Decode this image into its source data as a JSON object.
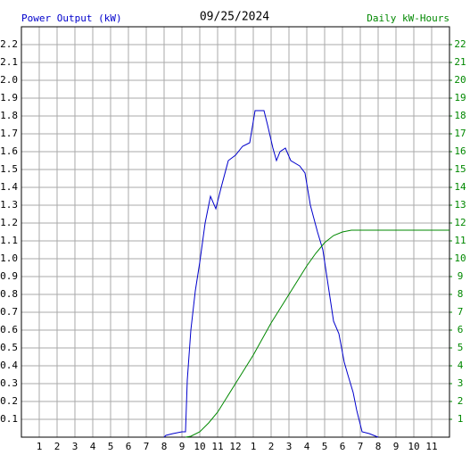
{
  "chart_data": {
    "type": "line",
    "title": "09/25/2024",
    "xlim": [
      0,
      24
    ],
    "xticks": [
      1,
      2,
      3,
      4,
      5,
      6,
      7,
      8,
      9,
      10,
      11,
      12,
      {
        "value": 13,
        "label": "1"
      },
      {
        "value": 14,
        "label": "2"
      },
      {
        "value": 15,
        "label": "3"
      },
      {
        "value": 16,
        "label": "4"
      },
      {
        "value": 17,
        "label": "5"
      },
      {
        "value": 18,
        "label": "6"
      },
      {
        "value": 19,
        "label": "7"
      },
      {
        "value": 20,
        "label": "8"
      },
      {
        "value": 21,
        "label": "9"
      },
      {
        "value": 22,
        "label": "10"
      },
      {
        "value": 23,
        "label": "11"
      }
    ],
    "ylim": [
      0,
      2.3
    ],
    "yticks": [
      0.1,
      0.2,
      0.3,
      0.4,
      0.5,
      0.6,
      0.7,
      0.8,
      0.9,
      {
        "value": 1,
        "label": "1.0"
      },
      1.1,
      1.2,
      1.3,
      1.4,
      1.5,
      1.6,
      1.7,
      1.8,
      1.9,
      {
        "value": 2,
        "label": "2.0"
      },
      2.1,
      2.2
    ],
    "y2lim": [
      0,
      23
    ],
    "y2ticks": [
      1,
      2,
      3,
      4,
      5,
      6,
      7,
      8,
      9,
      10,
      11,
      12,
      13,
      14,
      15,
      16,
      17,
      18,
      19,
      20,
      21,
      22
    ],
    "grid": true,
    "series": [
      {
        "name": "Power Output (kW)",
        "color": "#0000cc",
        "x": [
          8.0,
          8.1,
          8.5,
          9.0,
          9.2,
          9.3,
          9.5,
          9.75,
          10.0,
          10.3,
          10.6,
          10.9,
          11.2,
          11.6,
          12.0,
          12.4,
          12.8,
          13.1,
          13.6,
          13.8,
          14.1,
          14.3,
          14.5,
          14.8,
          15.1,
          15.6,
          15.9,
          16.2,
          16.6,
          16.9,
          17.2,
          17.5,
          17.8,
          18.1,
          18.3,
          18.6,
          18.8,
          19.1,
          19.5,
          20.0
        ],
        "values": [
          0,
          0.01,
          0.02,
          0.03,
          0.03,
          0.32,
          0.6,
          0.82,
          0.98,
          1.2,
          1.35,
          1.28,
          1.4,
          1.55,
          1.58,
          1.63,
          1.65,
          1.83,
          1.83,
          1.75,
          1.62,
          1.55,
          1.6,
          1.62,
          1.55,
          1.52,
          1.48,
          1.3,
          1.15,
          1.05,
          0.85,
          0.65,
          0.58,
          0.42,
          0.35,
          0.25,
          0.15,
          0.03,
          0.02,
          0
        ]
      },
      {
        "name": "Daily kW-Hours",
        "color": "#008800",
        "axis": "y2",
        "x": [
          9.2,
          9.5,
          10,
          10.5,
          11,
          11.5,
          12,
          12.5,
          13,
          13.5,
          14,
          14.5,
          15,
          15.5,
          16,
          16.5,
          17,
          17.5,
          18,
          18.5,
          24
        ],
        "values": [
          0,
          0.05,
          0.3,
          0.8,
          1.4,
          2.2,
          3.0,
          3.8,
          4.6,
          5.5,
          6.4,
          7.2,
          8.0,
          8.8,
          9.6,
          10.3,
          10.9,
          11.3,
          11.5,
          11.6,
          11.6
        ]
      }
    ]
  }
}
